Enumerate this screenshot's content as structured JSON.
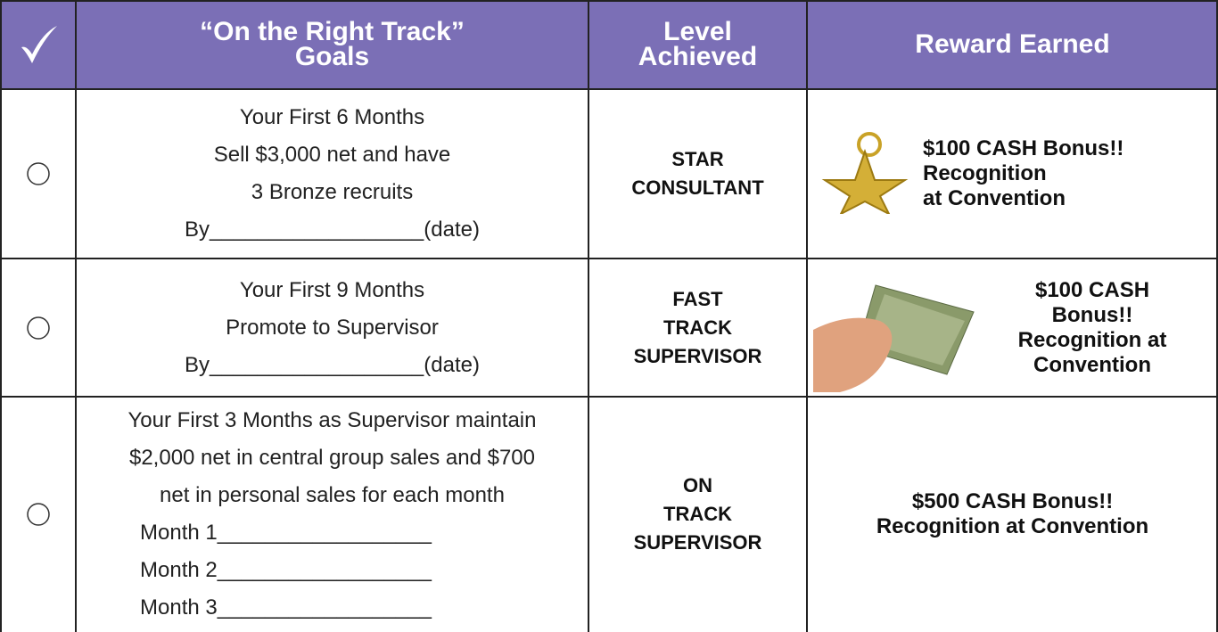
{
  "table": {
    "header": [
      [
        "“On the Right Track”",
        "Goals"
      ],
      [
        "Level",
        "Achieved"
      ],
      [
        "Reward Earned"
      ]
    ],
    "rows": [
      {
        "goal": [
          "Your First 6 Months",
          "Sell $3,000 net and have",
          "3 Bronze recruits",
          "By__________________(date)"
        ],
        "months": [],
        "level": [
          "STAR",
          "CONSULTANT"
        ],
        "reward": [
          "$100 CASH Bonus!!",
          "Recognition",
          "at Convention"
        ]
      },
      {
        "goal": [
          "Your First 9 Months",
          "Promote to Supervisor",
          "By__________________(date)"
        ],
        "months": [],
        "level": [
          "FAST",
          "TRACK",
          "SUPERVISOR"
        ],
        "reward": [
          "$100 CASH",
          "Bonus!!",
          "Recognition at",
          "Convention"
        ]
      },
      {
        "goal": [
          "Your First 3 Months as Supervisor maintain",
          "$2,000 net in central group sales and $700",
          "net in personal sales for each month"
        ],
        "months": [
          "Month 1__________________",
          "Month 2__________________",
          "Month 3__________________"
        ],
        "level": [
          "ON",
          "TRACK",
          "SUPERVISOR"
        ],
        "reward": [
          "$500 CASH Bonus!!",
          "Recognition at Convention"
        ]
      }
    ]
  }
}
